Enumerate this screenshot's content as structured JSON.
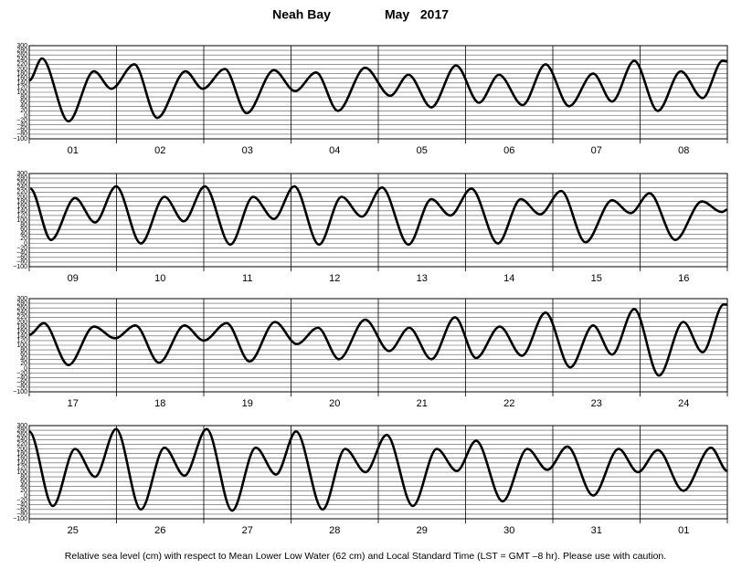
{
  "chart_data": [
    {
      "type": "line",
      "title": "Neah Bay",
      "subtitle": "May   2017",
      "note": "Relative sea level (cm) with respect to Mean Lower Low Water (62 cm) and Local Standard Time (LST = GMT –8 hr). Please use with caution.",
      "color": "#000000",
      "grid": true,
      "categories": [
        "01",
        "02",
        "03",
        "04",
        "05",
        "06",
        "07",
        "08"
      ],
      "xlim": [
        0,
        192
      ],
      "xticks": [
        0,
        24,
        48,
        72,
        96,
        120,
        144,
        168,
        192
      ],
      "ylim": [
        -100,
        300
      ],
      "yticks": [
        300,
        280,
        260,
        240,
        220,
        200,
        180,
        160,
        140,
        120,
        100,
        80,
        60,
        40,
        20,
        0,
        {
          "value": -20,
          "label": "−20"
        },
        {
          "value": -40,
          "label": "−40"
        },
        {
          "value": -60,
          "label": "−60"
        },
        {
          "value": -80,
          "label": "−80"
        },
        {
          "value": -100,
          "label": "−100"
        }
      ],
      "x": [
        0,
        3.5,
        10.8,
        17.8,
        22.6,
        28.9,
        35.2,
        43.0,
        47.7,
        53.8,
        59.8,
        67.3,
        73.1,
        78.9,
        84.9,
        92.4,
        99.3,
        104.3,
        110.6,
        117.4,
        123.7,
        129.2,
        135.7,
        142.0,
        148.5,
        155.1,
        160.3,
        166.4,
        172.9,
        179.2,
        185.2,
        190.7,
        192
      ],
      "values": [
        150,
        245,
        -25,
        190,
        115,
        220,
        -10,
        190,
        115,
        200,
        10,
        195,
        105,
        185,
        20,
        205,
        85,
        175,
        35,
        215,
        55,
        175,
        45,
        220,
        40,
        180,
        60,
        235,
        20,
        190,
        75,
        235,
        232
      ]
    },
    {
      "type": "line",
      "color": "#000000",
      "grid": true,
      "categories": [
        "09",
        "10",
        "11",
        "12",
        "13",
        "14",
        "15",
        "16"
      ],
      "xlim": [
        0,
        192
      ],
      "xticks": [
        0,
        24,
        48,
        72,
        96,
        120,
        144,
        168,
        192
      ],
      "ylim": [
        -100,
        300
      ],
      "yticks": [
        300,
        280,
        260,
        240,
        220,
        200,
        180,
        160,
        140,
        120,
        100,
        80,
        60,
        40,
        20,
        0,
        {
          "value": -20,
          "label": "−20"
        },
        {
          "value": -40,
          "label": "−40"
        },
        {
          "value": -60,
          "label": "−60"
        },
        {
          "value": -80,
          "label": "−80"
        },
        {
          "value": -100,
          "label": "−100"
        }
      ],
      "x": [
        0.3,
        6.0,
        12.6,
        18.1,
        23.9,
        30.7,
        37.2,
        42.5,
        48.3,
        55.3,
        61.6,
        67.3,
        72.9,
        79.7,
        85.9,
        91.5,
        97.0,
        104.3,
        110.6,
        115.8,
        121.6,
        128.9,
        135.2,
        140.5,
        146.3,
        153.0,
        160.3,
        165.4,
        170.6,
        177.7,
        185.0,
        190.5,
        192
      ],
      "values": [
        235,
        15,
        195,
        90,
        245,
        0,
        200,
        95,
        245,
        -5,
        200,
        105,
        245,
        -5,
        200,
        115,
        240,
        -5,
        190,
        120,
        235,
        0,
        190,
        125,
        225,
        5,
        185,
        130,
        215,
        15,
        180,
        135,
        145
      ]
    },
    {
      "type": "line",
      "color": "#000000",
      "grid": true,
      "categories": [
        "17",
        "18",
        "19",
        "20",
        "21",
        "22",
        "23",
        "24"
      ],
      "xlim": [
        0,
        192
      ],
      "xticks": [
        0,
        24,
        48,
        72,
        96,
        120,
        144,
        168,
        192
      ],
      "ylim": [
        -100,
        300
      ],
      "yticks": [
        300,
        280,
        260,
        240,
        220,
        200,
        180,
        160,
        140,
        120,
        100,
        80,
        60,
        40,
        20,
        0,
        {
          "value": -20,
          "label": "−20"
        },
        {
          "value": -40,
          "label": "−40"
        },
        {
          "value": -60,
          "label": "−60"
        },
        {
          "value": -80,
          "label": "−80"
        },
        {
          "value": -100,
          "label": "−100"
        }
      ],
      "x": [
        0,
        4.0,
        10.8,
        17.8,
        23.6,
        29.2,
        35.7,
        42.7,
        48.0,
        54.3,
        60.6,
        67.6,
        73.6,
        79.4,
        85.2,
        92.4,
        99.0,
        104.5,
        110.6,
        117.1,
        122.9,
        129.4,
        135.5,
        142.0,
        148.8,
        155.1,
        160.3,
        166.4,
        173.2,
        179.9,
        185.2,
        191.0,
        192
      ],
      "values": [
        145,
        195,
        15,
        180,
        130,
        185,
        25,
        185,
        120,
        195,
        30,
        200,
        105,
        175,
        40,
        210,
        75,
        175,
        40,
        220,
        45,
        180,
        55,
        240,
        5,
        185,
        60,
        255,
        -30,
        200,
        70,
        275,
        274
      ]
    },
    {
      "type": "line",
      "color": "#000000",
      "grid": true,
      "categories": [
        "25",
        "26",
        "27",
        "28",
        "29",
        "30",
        "31",
        "01"
      ],
      "xlim": [
        0,
        192
      ],
      "xticks": [
        0,
        24,
        48,
        72,
        96,
        120,
        144,
        168,
        192
      ],
      "ylim": [
        -100,
        300
      ],
      "yticks": [
        300,
        280,
        260,
        240,
        220,
        200,
        180,
        160,
        140,
        120,
        100,
        80,
        60,
        40,
        20,
        0,
        {
          "value": -20,
          "label": "−20"
        },
        {
          "value": -40,
          "label": "−40"
        },
        {
          "value": -60,
          "label": "−60"
        },
        {
          "value": -80,
          "label": "−80"
        },
        {
          "value": -100,
          "label": "−100"
        }
      ],
      "x": [
        0,
        6.5,
        12.6,
        18.1,
        23.9,
        30.7,
        37.2,
        42.7,
        48.8,
        55.8,
        62.3,
        67.9,
        73.4,
        80.7,
        86.9,
        92.5,
        98.3,
        105.5,
        112.1,
        117.6,
        122.9,
        130.2,
        137.0,
        142.5,
        148.0,
        155.1,
        162.1,
        167.4,
        172.9,
        179.9,
        187.5,
        192
      ],
      "values": [
        275,
        -45,
        200,
        80,
        285,
        -60,
        205,
        85,
        285,
        -65,
        205,
        90,
        275,
        -60,
        200,
        100,
        260,
        -45,
        200,
        105,
        235,
        -25,
        200,
        110,
        210,
        0,
        200,
        100,
        195,
        20,
        205,
        105
      ]
    }
  ]
}
